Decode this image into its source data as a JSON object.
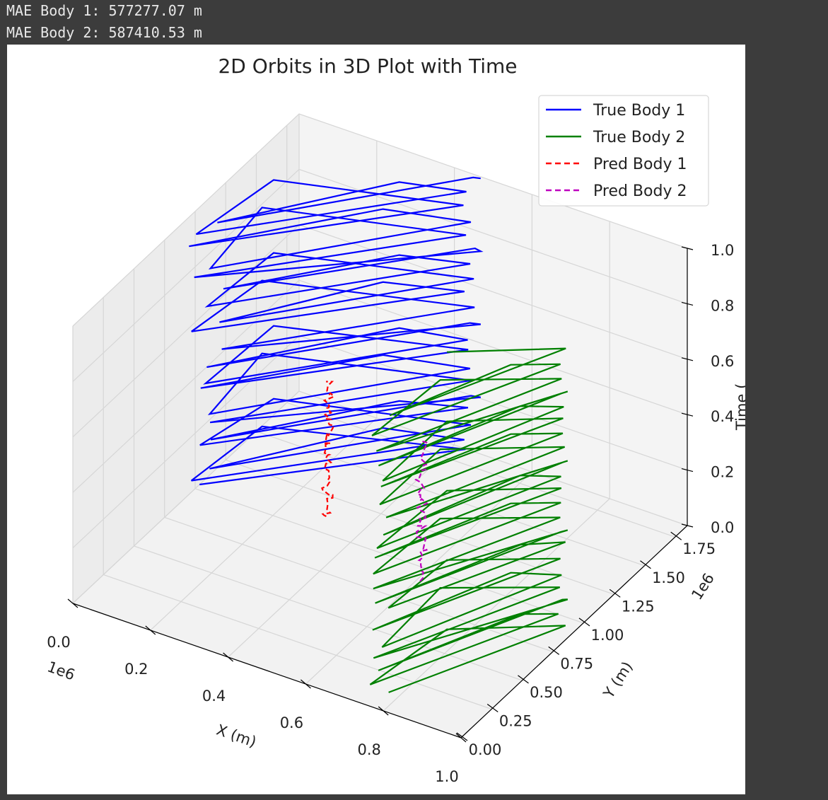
{
  "output": {
    "lines": [
      "MAE Body 1: 577277.07 m",
      "MAE Body 2: 587410.53 m"
    ]
  },
  "chart_data": {
    "type": "line",
    "title": "2D Orbits in 3D Plot with Time",
    "xlabel": "X (m)",
    "ylabel": "Y (m)",
    "zlabel": "Time (",
    "x_offset": "1e6",
    "y_offset": "1e6",
    "xlim": [
      0,
      1.0
    ],
    "ylim": [
      0,
      1.85
    ],
    "zlim": [
      0,
      1.0
    ],
    "x_ticks": [
      "0.0",
      "0.2",
      "0.4",
      "0.6",
      "0.8",
      "1.0"
    ],
    "y_ticks": [
      "0.00",
      "0.25",
      "0.50",
      "0.75",
      "1.00",
      "1.25",
      "1.50",
      "1.75"
    ],
    "z_ticks": [
      "0.0",
      "0.2",
      "0.4",
      "0.6",
      "0.8",
      "1.0"
    ],
    "grid": true,
    "legend_position": "top-right",
    "series": [
      {
        "name": "True Body 1",
        "color": "#0000ff",
        "style": "solid",
        "x_range": [
          0.0,
          0.5
        ],
        "y_range": [
          0.95,
          1.85
        ],
        "z_range": [
          0.0,
          1.0
        ],
        "cycles": 19
      },
      {
        "name": "True Body 2",
        "color": "#008000",
        "style": "solid",
        "x_range": [
          0.75,
          1.0
        ],
        "y_range": [
          0.05,
          0.95
        ],
        "z_range": [
          0.0,
          1.0
        ],
        "cycles": 20
      },
      {
        "name": "Pred Body 1",
        "color": "#ff0000",
        "style": "dashed",
        "x_range": [
          0.3,
          0.32
        ],
        "y_range": [
          1.08,
          1.12
        ],
        "z_range": [
          0.0,
          0.5
        ]
      },
      {
        "name": "Pred Body 2",
        "color": "#bf00bf",
        "style": "dashed",
        "x_range": [
          0.6,
          0.62
        ],
        "y_range": [
          0.9,
          0.94
        ],
        "z_range": [
          0.0,
          0.5
        ]
      }
    ]
  }
}
